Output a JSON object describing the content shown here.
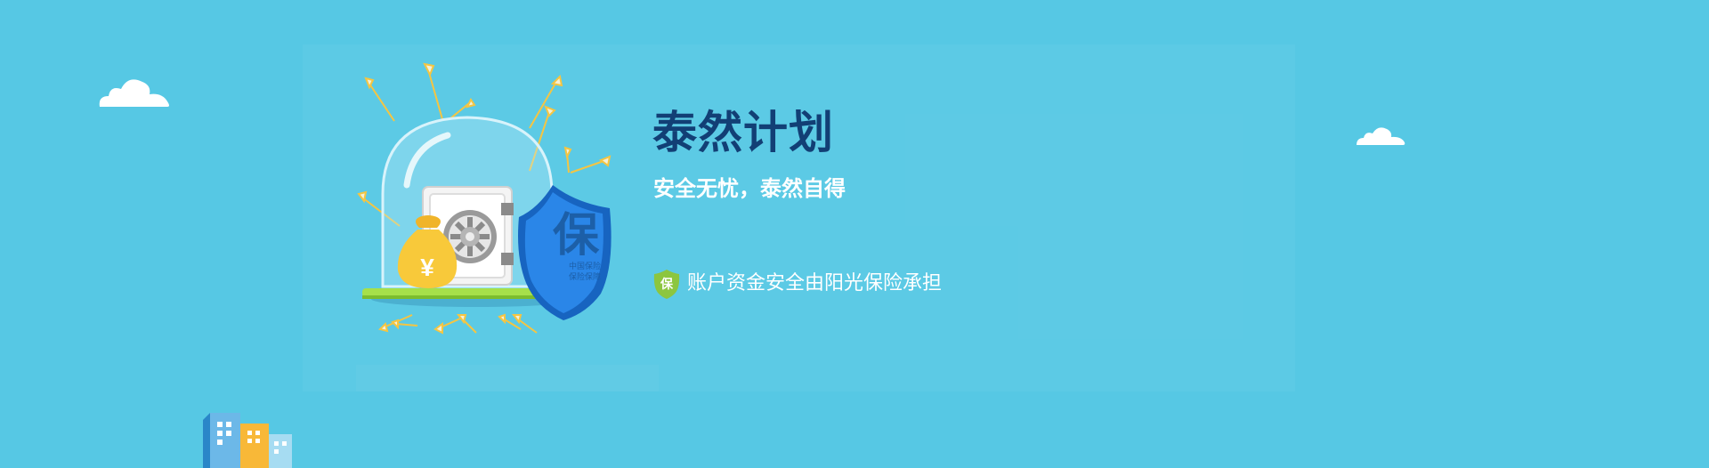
{
  "banner": {
    "title": "泰然计划",
    "subtitle": "安全无忧，泰然自得",
    "guarantee_text": "账户资金安全由阳光保险承担",
    "guarantee_badge": "保",
    "shield_char": "保",
    "shield_small_text": [
      "中国保险",
      "保险保障"
    ],
    "money_symbol": "¥"
  },
  "colors": {
    "background": "#56c8e4",
    "title": "#123f75",
    "shield": "#1a6fd0",
    "badge": "#8cc63f"
  },
  "icons": [
    "cloud-icon",
    "shield-icon",
    "safe-icon",
    "money-bag-icon",
    "arrow-icon",
    "buildings-icon",
    "guarantee-badge-icon"
  ]
}
